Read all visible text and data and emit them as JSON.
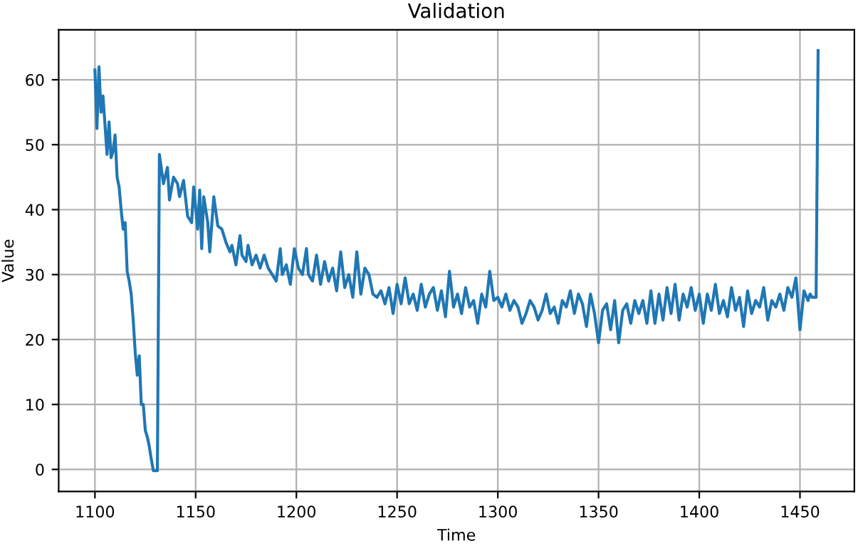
{
  "chart_data": {
    "type": "line",
    "title": "Validation",
    "xlabel": "Time",
    "ylabel": "Value",
    "x": [
      1100,
      1101,
      1102,
      1103,
      1104,
      1105,
      1106,
      1107,
      1108,
      1109,
      1110,
      1111,
      1112,
      1113,
      1114,
      1115,
      1116,
      1117,
      1118,
      1119,
      1120,
      1121,
      1122,
      1123,
      1124,
      1125,
      1126,
      1127,
      1128,
      1129,
      1131,
      1132,
      1134,
      1136,
      1137,
      1139,
      1141,
      1142,
      1144,
      1146,
      1148,
      1149,
      1151,
      1152,
      1153,
      1154,
      1156,
      1157,
      1159,
      1161,
      1163,
      1165,
      1167,
      1168,
      1170,
      1172,
      1173,
      1175,
      1176,
      1178,
      1180,
      1182,
      1184,
      1186,
      1188,
      1190,
      1192,
      1193,
      1195,
      1197,
      1199,
      1201,
      1203,
      1205,
      1206,
      1208,
      1210,
      1212,
      1214,
      1216,
      1218,
      1220,
      1222,
      1224,
      1226,
      1228,
      1230,
      1232,
      1234,
      1236,
      1238,
      1240,
      1242,
      1244,
      1246,
      1248,
      1250,
      1252,
      1254,
      1256,
      1258,
      1260,
      1262,
      1264,
      1266,
      1268,
      1270,
      1272,
      1274,
      1276,
      1278,
      1280,
      1282,
      1284,
      1286,
      1288,
      1290,
      1292,
      1294,
      1296,
      1298,
      1300,
      1302,
      1304,
      1306,
      1308,
      1310,
      1312,
      1314,
      1316,
      1318,
      1320,
      1322,
      1324,
      1326,
      1328,
      1330,
      1332,
      1334,
      1336,
      1338,
      1340,
      1342,
      1344,
      1346,
      1348,
      1350,
      1352,
      1354,
      1356,
      1358,
      1360,
      1362,
      1364,
      1366,
      1368,
      1370,
      1372,
      1374,
      1376,
      1378,
      1380,
      1382,
      1384,
      1386,
      1388,
      1390,
      1392,
      1394,
      1396,
      1398,
      1400,
      1402,
      1404,
      1406,
      1408,
      1410,
      1412,
      1414,
      1416,
      1418,
      1420,
      1422,
      1424,
      1426,
      1428,
      1430,
      1432,
      1434,
      1436,
      1438,
      1440,
      1442,
      1444,
      1446,
      1448,
      1450,
      1452,
      1454,
      1455,
      1456,
      1458,
      1459
    ],
    "series": [
      {
        "color": "#1f77b4",
        "values": [
          61.5,
          52.5,
          62,
          55,
          57.5,
          53,
          48.5,
          53.5,
          48,
          49,
          51.5,
          45,
          43.5,
          40,
          37,
          38,
          30.5,
          29,
          27,
          23,
          18,
          14.5,
          17.5,
          10,
          10,
          6,
          5,
          3.5,
          1.5,
          -0.2,
          -0.2,
          48.5,
          44,
          46.5,
          41.5,
          45,
          44,
          42,
          44.5,
          39,
          38,
          43.5,
          37,
          43,
          34,
          42,
          38,
          33.5,
          42,
          37.5,
          37,
          35,
          33.5,
          34.5,
          31.5,
          36,
          33,
          32,
          34.5,
          31.5,
          33,
          31,
          33,
          31,
          30,
          29,
          34,
          30,
          31.5,
          28.5,
          34,
          31,
          30,
          34,
          30,
          29,
          33,
          28.5,
          32,
          29,
          31,
          27.5,
          33.5,
          28,
          30,
          26.5,
          33.5,
          27,
          31,
          30,
          27,
          26.5,
          27.5,
          25.5,
          28,
          24,
          28.5,
          25.5,
          29.5,
          25.5,
          27,
          24.5,
          28.5,
          25,
          27,
          28,
          24.5,
          27.5,
          23.5,
          30.5,
          25,
          27,
          24,
          28,
          25,
          26,
          22.5,
          27,
          25,
          30.5,
          26,
          26.5,
          25,
          27,
          24.5,
          26,
          25,
          22.5,
          24,
          26,
          25,
          23,
          24.5,
          27,
          24,
          25,
          22.5,
          26,
          25,
          27.5,
          24,
          27,
          25.5,
          22,
          27,
          24,
          19.5,
          24.5,
          25.5,
          21.5,
          26,
          19.5,
          24.5,
          25.5,
          22.5,
          26,
          24,
          26,
          22.5,
          27.5,
          22.5,
          27,
          23,
          28,
          24,
          28.5,
          23,
          27,
          25,
          28,
          24.5,
          27,
          22.5,
          27,
          24.5,
          28.5,
          24,
          26,
          23.5,
          28,
          24.5,
          26.5,
          22,
          27.5,
          24,
          26,
          25,
          28,
          23,
          26,
          25,
          27,
          24.5,
          28,
          26.5,
          29.5,
          21.5,
          27.5,
          26,
          27,
          26.5,
          26.5,
          64.5
        ]
      }
    ],
    "xlim": [
      1082,
      1477
    ],
    "ylim": [
      -3.4,
      67.7
    ],
    "xticks": [
      1100,
      1150,
      1200,
      1250,
      1300,
      1350,
      1400,
      1450
    ],
    "yticks": [
      0,
      10,
      20,
      30,
      40,
      50,
      60
    ],
    "grid": true,
    "legend": false
  }
}
